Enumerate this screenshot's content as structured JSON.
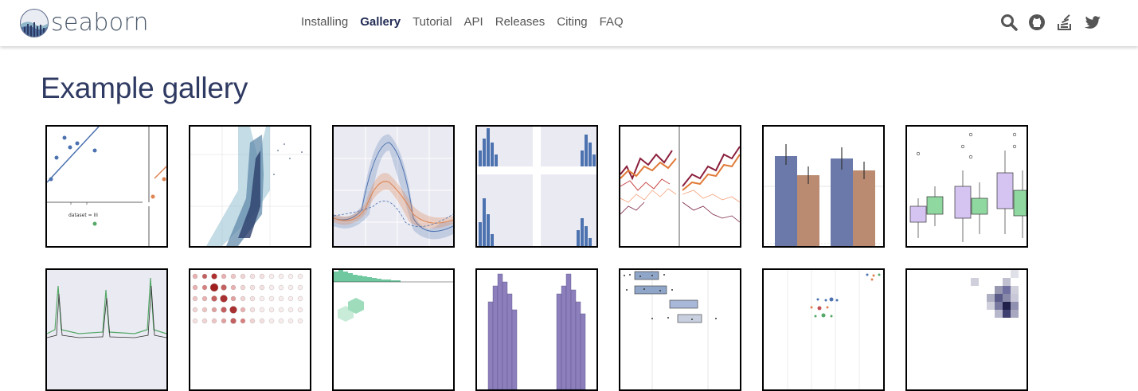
{
  "brand": {
    "name": "seaborn",
    "logo_icon": "seaborn-logo-icon"
  },
  "nav": {
    "items": [
      {
        "label": "Installing",
        "active": false
      },
      {
        "label": "Gallery",
        "active": true
      },
      {
        "label": "Tutorial",
        "active": false
      },
      {
        "label": "API",
        "active": false
      },
      {
        "label": "Releases",
        "active": false
      },
      {
        "label": "Citing",
        "active": false
      },
      {
        "label": "FAQ",
        "active": false
      }
    ]
  },
  "header_icons": [
    "search-icon",
    "github-icon",
    "stackoverflow-icon",
    "twitter-icon"
  ],
  "page": {
    "title": "Example gallery"
  },
  "thumb_text": {
    "anscombe_label": "dataset = III"
  },
  "colors": {
    "title": "#2f3a62",
    "nav_active": "#232d56",
    "nav": "#555555"
  }
}
